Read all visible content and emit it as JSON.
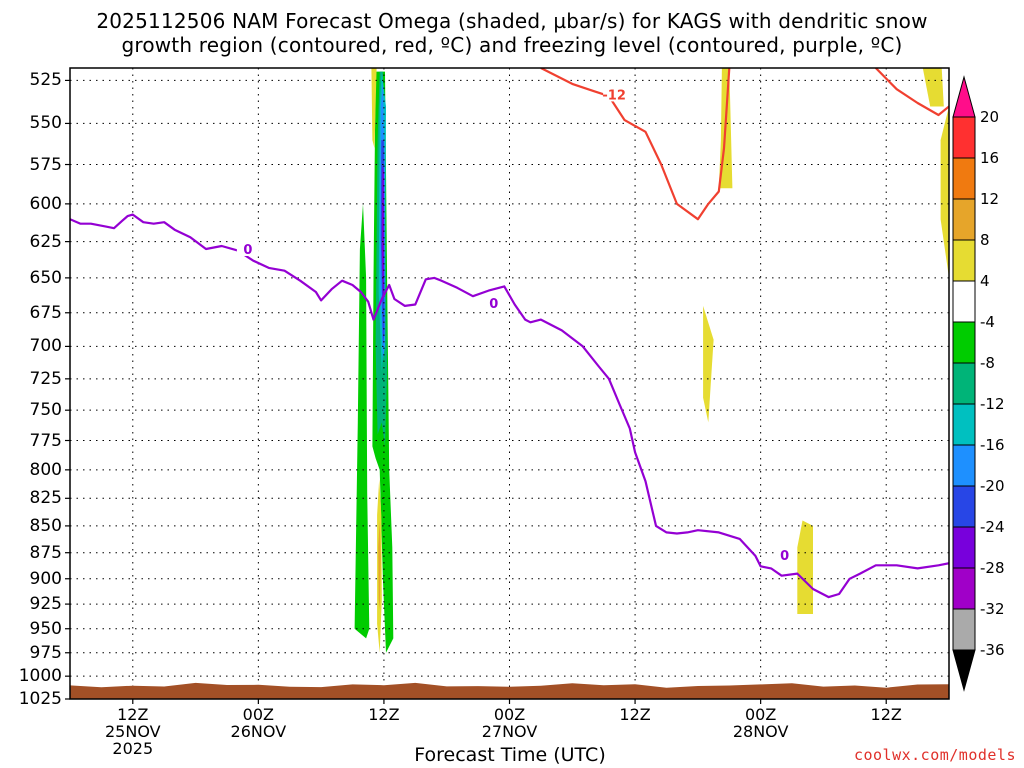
{
  "chart_data": {
    "type": "heatmap",
    "title": "2025112506 NAM Forecast Omega (shaded, µbar/s) for KAGS with dendritic snow",
    "subtitle": "growth region (contoured, red, ºC) and freezing level (contoured, purple, ºC)",
    "xlabel": "Forecast Time (UTC)",
    "ylabel": "",
    "y_ticks": [
      "525",
      "550",
      "575",
      "600",
      "625",
      "650",
      "675",
      "700",
      "725",
      "750",
      "775",
      "800",
      "825",
      "850",
      "875",
      "900",
      "925",
      "950",
      "975",
      "1000",
      "1025"
    ],
    "x_ticks": [
      {
        "line1": "12Z",
        "line2": "25NOV",
        "line3": "2025"
      },
      {
        "line1": "00Z",
        "line2": "26NOV",
        "line3": ""
      },
      {
        "line1": "12Z",
        "line2": "",
        "line3": ""
      },
      {
        "line1": "00Z",
        "line2": "27NOV",
        "line3": ""
      },
      {
        "line1": "12Z",
        "line2": "",
        "line3": ""
      },
      {
        "line1": "00Z",
        "line2": "28NOV",
        "line3": ""
      },
      {
        "line1": "12Z",
        "line2": "",
        "line3": ""
      }
    ],
    "x_hours": [
      6,
      18,
      30,
      42,
      54,
      66,
      78
    ],
    "x_range_hours": [
      0,
      84
    ],
    "ylim": [
      1025,
      518
    ],
    "y_scale": "log-pressure",
    "grid": true,
    "colorbar": {
      "labels": [
        "20",
        "16",
        "12",
        "8",
        "4",
        "-4",
        "-8",
        "-12",
        "-16",
        "-20",
        "-24",
        "-28",
        "-32",
        "-36"
      ],
      "colors": [
        "#ff0d8a",
        "#ff3030",
        "#f07a10",
        "#e6a52a",
        "#e6dc32",
        "#ffffff",
        "#00cc00",
        "#00b478",
        "#00c0c0",
        "#1e90ff",
        "#2846e6",
        "#7800dc",
        "#a000c8",
        "#aaaaaa",
        "#000000"
      ]
    },
    "contour_labels": {
      "freezing": "0",
      "dgz": "-12"
    },
    "freezing_level": {
      "color": "#9400d3",
      "x": [
        0,
        1,
        2,
        3.5,
        4.2,
        5,
        5.5,
        6,
        7,
        8,
        9,
        10,
        11.5,
        13,
        14.5,
        16,
        17.5,
        19,
        20.5,
        22,
        23.5,
        24,
        25,
        26,
        27,
        27.8,
        28.5,
        29,
        29.8,
        30.5,
        31,
        32,
        33,
        34,
        34.8,
        35.5,
        37,
        38.5,
        40,
        41.5,
        42.5,
        43.5,
        44,
        45,
        47,
        49,
        50.5,
        51.5,
        52.5,
        53.5,
        54,
        55,
        56,
        57,
        58,
        59,
        60,
        62,
        64,
        65.5,
        66,
        67,
        68,
        69.5,
        71,
        72.5,
        73.5,
        74.5,
        75.5,
        77,
        79,
        81,
        83,
        84
      ],
      "y": [
        610,
        613,
        613,
        615,
        616,
        611,
        608,
        607,
        612,
        613,
        612,
        617,
        622,
        630,
        628,
        631,
        638,
        643,
        645,
        652,
        660,
        666,
        658,
        652,
        655,
        660,
        667,
        680,
        665,
        655,
        665,
        670,
        669,
        651,
        650,
        652,
        657,
        663,
        659,
        656,
        669,
        680,
        682,
        680,
        688,
        700,
        715,
        725,
        745,
        765,
        785,
        810,
        850,
        856,
        857,
        856,
        854,
        856,
        862,
        878,
        888,
        890,
        897,
        895,
        910,
        918,
        915,
        900,
        895,
        887,
        887,
        890,
        887,
        885
      ],
      "label": {
        "x": 17,
        "y": 630
      }
    },
    "dgz_contour": {
      "color": "#f04030",
      "x": [
        45,
        48,
        50,
        51.5,
        53,
        55,
        56.5,
        58,
        60,
        61,
        62,
        62.5,
        63
      ],
      "y": [
        518,
        527,
        531,
        534,
        548,
        555,
        575,
        600,
        610,
        600,
        592,
        565,
        518
      ],
      "x2": [
        77,
        79,
        81,
        83,
        84
      ],
      "y2": [
        518,
        530,
        538,
        545,
        540
      ],
      "label": {
        "x": 52,
        "y": 533
      }
    },
    "omega_regions": [
      {
        "color": "#00cc00",
        "pts": [
          [
            27.2,
            950
          ],
          [
            27.5,
            760
          ],
          [
            27.7,
            630
          ],
          [
            28,
            600
          ],
          [
            28.3,
            650
          ],
          [
            28.4,
            820
          ],
          [
            28.6,
            950
          ],
          [
            28.3,
            960
          ]
        ]
      },
      {
        "color": "#00cc00",
        "pts": [
          [
            28.9,
            780
          ],
          [
            29,
            650
          ],
          [
            29.2,
            520
          ],
          [
            30.1,
            520
          ],
          [
            30.3,
            650
          ],
          [
            30.5,
            800
          ],
          [
            30.8,
            870
          ],
          [
            30.9,
            960
          ],
          [
            30.2,
            975
          ],
          [
            29.9,
            900
          ],
          [
            29.6,
            800
          ],
          [
            29.2,
            790
          ]
        ]
      },
      {
        "color": "#00b478",
        "pts": [
          [
            29.2,
            700
          ],
          [
            29.4,
            560
          ],
          [
            29.6,
            520
          ],
          [
            29.9,
            520
          ],
          [
            30.1,
            600
          ],
          [
            30.3,
            720
          ],
          [
            30.1,
            780
          ],
          [
            29.8,
            760
          ],
          [
            29.4,
            770
          ]
        ]
      },
      {
        "color": "#00c0c0",
        "pts": [
          [
            29.5,
            660
          ],
          [
            29.6,
            540
          ],
          [
            29.8,
            520
          ],
          [
            30.2,
            540
          ],
          [
            30.1,
            680
          ],
          [
            29.8,
            720
          ]
        ]
      },
      {
        "color": "#1e90ff",
        "pts": [
          [
            29.6,
            640
          ],
          [
            29.7,
            540
          ],
          [
            29.9,
            525
          ],
          [
            30.1,
            580
          ],
          [
            30.1,
            700
          ],
          [
            29.9,
            710
          ]
        ]
      },
      {
        "color": "#2846e6",
        "pts": [
          [
            29.7,
            620
          ],
          [
            29.75,
            560
          ],
          [
            30,
            560
          ],
          [
            30.05,
            690
          ],
          [
            29.9,
            700
          ]
        ]
      },
      {
        "color": "#7800dc",
        "pts": [
          [
            29.8,
            630
          ],
          [
            29.85,
            575
          ],
          [
            30,
            580
          ],
          [
            30,
            660
          ],
          [
            29.9,
            665
          ]
        ]
      },
      {
        "color": "#e6dc32",
        "pts": [
          [
            29.35,
            840
          ],
          [
            29.55,
            808
          ],
          [
            29.75,
            840
          ],
          [
            29.8,
            920
          ],
          [
            29.6,
            975
          ],
          [
            29.35,
            945
          ]
        ]
      },
      {
        "color": "#e6a52a",
        "pts": [
          [
            29.45,
            870
          ],
          [
            29.6,
            845
          ],
          [
            29.7,
            880
          ],
          [
            29.6,
            930
          ],
          [
            29.5,
            920
          ]
        ]
      },
      {
        "color": "#e6dc32",
        "pts": [
          [
            28.8,
            518
          ],
          [
            29.3,
            518
          ],
          [
            29.1,
            565
          ],
          [
            28.9,
            560
          ]
        ]
      },
      {
        "color": "#e6dc32",
        "pts": [
          [
            62.3,
            518
          ],
          [
            63,
            518
          ],
          [
            63.3,
            590
          ],
          [
            62,
            590
          ],
          [
            62.2,
            560
          ]
        ]
      },
      {
        "color": "#e6dc32",
        "pts": [
          [
            60.5,
            670
          ],
          [
            61.5,
            695
          ],
          [
            61,
            760
          ],
          [
            60.5,
            740
          ]
        ]
      },
      {
        "color": "#e6dc32",
        "pts": [
          [
            69.5,
            870
          ],
          [
            70,
            845
          ],
          [
            71,
            850
          ],
          [
            71,
            935
          ],
          [
            69.5,
            935
          ]
        ]
      },
      {
        "color": "#e6dc32",
        "pts": [
          [
            81.5,
            518
          ],
          [
            83.3,
            518
          ],
          [
            83.5,
            540
          ],
          [
            82.2,
            540
          ]
        ]
      },
      {
        "color": "#e6dc32",
        "pts": [
          [
            83.2,
            560
          ],
          [
            84,
            540
          ],
          [
            84,
            650
          ],
          [
            83.2,
            610
          ]
        ]
      }
    ],
    "terrain": {
      "color": "#a35026",
      "top_hpa": 1010
    }
  },
  "credit": "coolwx.com/models"
}
